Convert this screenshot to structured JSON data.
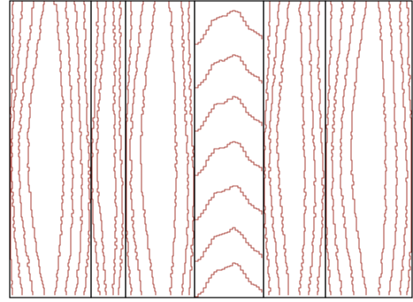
{
  "image": {
    "subject": "wood-grain-planks",
    "plank_count": 6,
    "colors": {
      "background": "#ffffff",
      "plank_outline": "#000000",
      "grain": "#b0524a"
    },
    "planks": [
      {
        "name": "plank-1",
        "pattern": "vertical-waves"
      },
      {
        "name": "plank-2",
        "pattern": "vertical-waves"
      },
      {
        "name": "plank-3",
        "pattern": "vertical-waves"
      },
      {
        "name": "plank-4",
        "pattern": "cathedral-arches"
      },
      {
        "name": "plank-5",
        "pattern": "vertical-waves"
      },
      {
        "name": "plank-6",
        "pattern": "vertical-waves"
      }
    ]
  }
}
